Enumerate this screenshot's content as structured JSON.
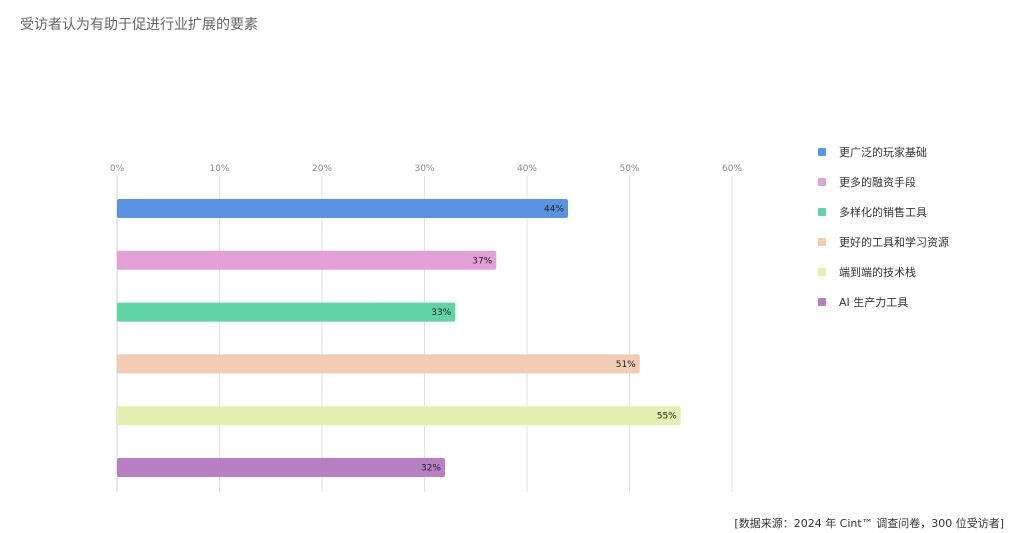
{
  "title": "受访者认为有助于促进行业扩展的要素",
  "source_note": "[数据来源：2024 年 Cint™ 调查问卷，300 位受访者]",
  "chart_data": {
    "type": "bar",
    "orientation": "horizontal",
    "title": "受访者认为有助于促进行业扩展的要素",
    "categories": [
      "更广泛的玩家基础",
      "更多的融资手段",
      "多样化的销售工具",
      "更好的工具和学习资源",
      "端到端的技术栈",
      "AI 生产力工具"
    ],
    "values": [
      44,
      37,
      33,
      51,
      55,
      32
    ],
    "value_labels": [
      "44%",
      "37%",
      "33%",
      "51%",
      "55%",
      "32%"
    ],
    "colors": [
      "#5b93e3",
      "#e4a0d8",
      "#5fd4a5",
      "#f2cdb3",
      "#e4f0b2",
      "#b87fc4"
    ],
    "xlim": [
      0,
      60
    ],
    "x_ticks": [
      "0%",
      "10%",
      "20%",
      "30%",
      "40%",
      "50%",
      "60%"
    ],
    "x_tick_position": "top",
    "grid": true,
    "legend_position": "right"
  }
}
